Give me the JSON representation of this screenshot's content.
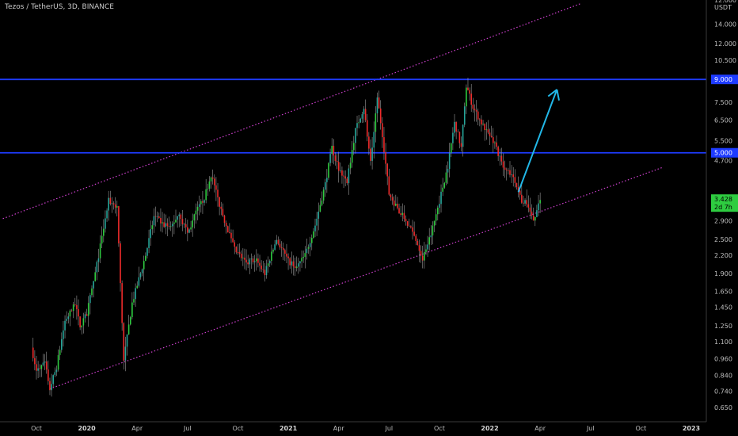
{
  "header": {
    "title": "Tezos / TetherUS, 3D, BINANCE"
  },
  "colors": {
    "up": "#26a69a",
    "up_bright": "#2ecc40",
    "down": "#ef2b2b",
    "level_line": "#1e3bff",
    "channel": "#d040d0",
    "arrow": "#22b8e8",
    "price_tag": "#2ecc40",
    "wick": "#9a9a9a"
  },
  "chart_data": {
    "type": "candlestick",
    "title": "Tezos / TetherUS, 3D, BINANCE",
    "y_scale": "log",
    "ylim": [
      0.58,
      17.0
    ],
    "y_unit_label": "USDT",
    "y_ticks": [
      {
        "value": 14.0,
        "label": "14.000"
      },
      {
        "value": 12.0,
        "label": "12.000"
      },
      {
        "value": 10.5,
        "label": "10.500"
      },
      {
        "value": 7.5,
        "label": "7.500"
      },
      {
        "value": 6.5,
        "label": "6.500"
      },
      {
        "value": 5.5,
        "label": "5.500"
      },
      {
        "value": 4.7,
        "label": "4.700"
      },
      {
        "value": 3.4,
        "label": "3.400"
      },
      {
        "value": 2.9,
        "label": "2.900"
      },
      {
        "value": 2.5,
        "label": "2.500"
      },
      {
        "value": 2.2,
        "label": "2.200"
      },
      {
        "value": 1.9,
        "label": "1.900"
      },
      {
        "value": 1.65,
        "label": "1.650"
      },
      {
        "value": 1.45,
        "label": "1.450"
      },
      {
        "value": 1.25,
        "label": "1.250"
      },
      {
        "value": 1.1,
        "label": "1.100"
      },
      {
        "value": 0.96,
        "label": "0.960"
      },
      {
        "value": 0.84,
        "label": "0.840"
      },
      {
        "value": 0.74,
        "label": "0.740"
      },
      {
        "value": 0.65,
        "label": "0.650"
      }
    ],
    "top_cut_label": "12.000",
    "x_ticks": [
      {
        "label": "Oct",
        "bold": false
      },
      {
        "label": "2020",
        "bold": true
      },
      {
        "label": "Apr",
        "bold": false
      },
      {
        "label": "Jul",
        "bold": false
      },
      {
        "label": "Oct",
        "bold": false
      },
      {
        "label": "2021",
        "bold": true
      },
      {
        "label": "Apr",
        "bold": false
      },
      {
        "label": "Jul",
        "bold": false
      },
      {
        "label": "Oct",
        "bold": false
      },
      {
        "label": "2022",
        "bold": true
      },
      {
        "label": "Apr",
        "bold": false
      },
      {
        "label": "Jul",
        "bold": false
      },
      {
        "label": "Oct",
        "bold": false
      },
      {
        "label": "2023",
        "bold": true
      }
    ],
    "x_tick_times": [
      0,
      3,
      6,
      9,
      12,
      15,
      18,
      21,
      24,
      27,
      30,
      33,
      36,
      39
    ],
    "x_range_months": [
      -0.3,
      40.3
    ],
    "horizontal_levels": [
      {
        "value": 9.0,
        "label": "9.000"
      },
      {
        "value": 5.0,
        "label": "5.000"
      }
    ],
    "current_price": {
      "value": 3.428,
      "label": "3.428",
      "countdown": "2d 7h"
    },
    "channel_lines": [
      {
        "name": "upper",
        "start": {
          "t": -2.0,
          "price": 2.95
        },
        "end": {
          "t": 32.4,
          "price": 16.5
        }
      },
      {
        "name": "lower",
        "start": {
          "t": 0.8,
          "price": 0.755
        },
        "end": {
          "t": 37.3,
          "price": 4.45
        }
      }
    ],
    "arrow": {
      "start": {
        "t": 28.7,
        "price": 3.65
      },
      "end": {
        "t": 31.0,
        "price": 8.3
      }
    },
    "price_path": [
      [
        -0.3,
        1.05
      ],
      [
        0.0,
        0.88
      ],
      [
        0.5,
        0.92
      ],
      [
        0.8,
        0.76
      ],
      [
        1.2,
        0.9
      ],
      [
        1.7,
        1.3
      ],
      [
        2.3,
        1.48
      ],
      [
        2.6,
        1.25
      ],
      [
        3.0,
        1.38
      ],
      [
        3.5,
        1.9
      ],
      [
        4.3,
        3.4
      ],
      [
        4.8,
        3.25
      ],
      [
        5.2,
        0.95
      ],
      [
        5.7,
        1.5
      ],
      [
        6.5,
        2.2
      ],
      [
        7.0,
        3.0
      ],
      [
        7.6,
        2.8
      ],
      [
        8.0,
        2.75
      ],
      [
        8.5,
        3.1
      ],
      [
        9.0,
        2.6
      ],
      [
        9.5,
        3.1
      ],
      [
        10.0,
        3.5
      ],
      [
        10.4,
        4.2
      ],
      [
        10.9,
        3.3
      ],
      [
        11.3,
        2.8
      ],
      [
        11.8,
        2.3
      ],
      [
        12.5,
        2.05
      ],
      [
        13.0,
        2.15
      ],
      [
        13.6,
        1.9
      ],
      [
        14.3,
        2.5
      ],
      [
        15.0,
        2.1
      ],
      [
        15.5,
        2.0
      ],
      [
        16.0,
        2.2
      ],
      [
        16.6,
        2.8
      ],
      [
        17.2,
        3.9
      ],
      [
        17.6,
        5.2
      ],
      [
        18.0,
        4.4
      ],
      [
        18.5,
        4.0
      ],
      [
        19.0,
        6.0
      ],
      [
        19.5,
        7.2
      ],
      [
        19.9,
        4.6
      ],
      [
        20.3,
        7.8
      ],
      [
        20.6,
        5.8
      ],
      [
        21.0,
        3.6
      ],
      [
        21.5,
        3.2
      ],
      [
        22.0,
        2.9
      ],
      [
        22.6,
        2.5
      ],
      [
        23.0,
        2.15
      ],
      [
        23.5,
        2.6
      ],
      [
        24.0,
        3.4
      ],
      [
        24.5,
        4.5
      ],
      [
        24.9,
        6.4
      ],
      [
        25.3,
        5.2
      ],
      [
        25.6,
        8.6
      ],
      [
        26.0,
        7.2
      ],
      [
        26.6,
        6.2
      ],
      [
        27.3,
        5.4
      ],
      [
        27.8,
        4.4
      ],
      [
        28.4,
        4.2
      ],
      [
        28.9,
        3.4
      ],
      [
        29.3,
        3.3
      ],
      [
        29.6,
        2.85
      ],
      [
        30.0,
        3.42
      ]
    ]
  }
}
